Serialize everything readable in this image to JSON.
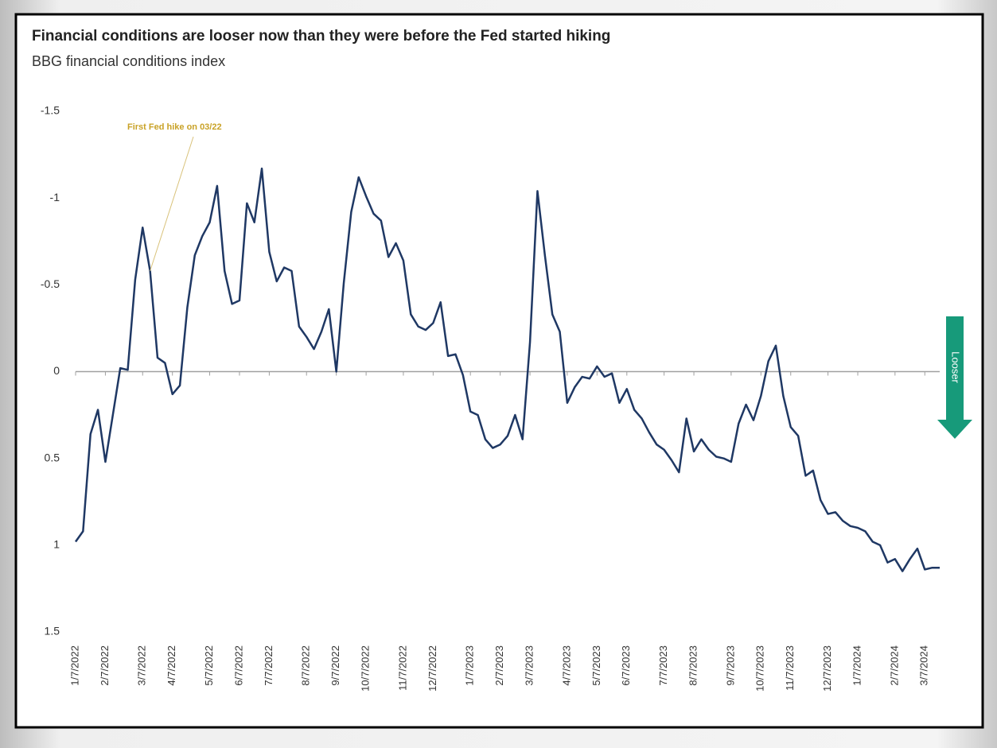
{
  "chart_data": {
    "type": "line",
    "title": "Financial conditions are looser now than they were before the Fed started hiking",
    "subtitle": "BBG financial conditions index",
    "annotation": "First Fed hike on 03/22",
    "arrow_label": "Looser",
    "categories": [
      "1/7/2022",
      null,
      null,
      null,
      "2/7/2022",
      null,
      null,
      null,
      null,
      "3/7/2022",
      null,
      null,
      null,
      "4/7/2022",
      null,
      null,
      null,
      null,
      "5/7/2022",
      null,
      null,
      null,
      "6/7/2022",
      null,
      null,
      null,
      "7/7/2022",
      null,
      null,
      null,
      null,
      "8/7/2022",
      null,
      null,
      null,
      "9/7/2022",
      null,
      null,
      null,
      "10/7/2022",
      null,
      null,
      null,
      null,
      "11/7/2022",
      null,
      null,
      null,
      "12/7/2022",
      null,
      null,
      null,
      null,
      "1/7/2023",
      null,
      null,
      null,
      "2/7/2023",
      null,
      null,
      null,
      "3/7/2023",
      null,
      null,
      null,
      null,
      "4/7/2023",
      null,
      null,
      null,
      "5/7/2023",
      null,
      null,
      null,
      "6/7/2023",
      null,
      null,
      null,
      null,
      "7/7/2023",
      null,
      null,
      null,
      "8/7/2023",
      null,
      null,
      null,
      null,
      "9/7/2023",
      null,
      null,
      null,
      "10/7/2023",
      null,
      null,
      null,
      "11/7/2023",
      null,
      null,
      null,
      null,
      "12/7/2023",
      null,
      null,
      null,
      "1/7/2024",
      null,
      null,
      null,
      null,
      "2/7/2024",
      null,
      null,
      null,
      "3/7/2024",
      null,
      null
    ],
    "series": [
      {
        "color": "#1f3864",
        "values": [
          0.98,
          0.92,
          0.36,
          0.22,
          0.52,
          0.25,
          -0.02,
          -0.01,
          -0.53,
          -0.83,
          -0.58,
          -0.08,
          -0.05,
          0.13,
          0.08,
          -0.37,
          -0.67,
          -0.78,
          -0.86,
          -1.07,
          -0.58,
          -0.39,
          -0.41,
          -0.97,
          -0.86,
          -1.17,
          -0.69,
          -0.52,
          -0.6,
          -0.58,
          -0.26,
          -0.2,
          -0.13,
          -0.23,
          -0.36,
          0,
          -0.51,
          -0.92,
          -1.12,
          -1.01,
          -0.91,
          -0.87,
          -0.66,
          -0.74,
          -0.64,
          -0.33,
          -0.26,
          -0.24,
          -0.28,
          -0.4,
          -0.09,
          -0.1,
          0.02,
          0.23,
          0.25,
          0.39,
          0.44,
          0.42,
          0.37,
          0.25,
          0.39,
          -0.17,
          -1.04,
          -0.67,
          -0.33,
          -0.23,
          0.18,
          0.09,
          0.03,
          0.04,
          -0.03,
          0.03,
          0.01,
          0.18,
          0.1,
          0.22,
          0.27,
          0.35,
          0.42,
          0.45,
          0.51,
          0.58,
          0.27,
          0.46,
          0.39,
          0.45,
          0.49,
          0.5,
          0.52,
          0.3,
          0.19,
          0.28,
          0.14,
          -0.06,
          -0.15,
          0.14,
          0.32,
          0.37,
          0.6,
          0.57,
          0.74,
          0.82,
          0.81,
          0.86,
          0.89,
          0.9,
          0.92,
          0.98,
          1.0,
          1.1,
          1.08,
          1.15,
          1.08,
          1.02,
          1.14,
          1.13,
          1.13
        ]
      }
    ],
    "ylim": [
      -1.5,
      1.5
    ],
    "y_inverted": true,
    "yticks": [
      -1.5,
      -1,
      -0.5,
      0,
      0.5,
      1,
      1.5
    ]
  }
}
